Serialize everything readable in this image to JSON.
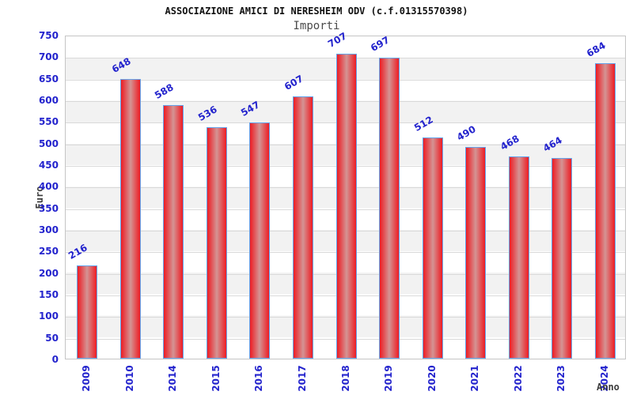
{
  "page": {
    "title": "ASSOCIAZIONE AMICI DI NERESHEIM ODV (c.f.01315570398)",
    "subtitle": "Importi"
  },
  "chart_data": {
    "type": "bar",
    "title": "ASSOCIAZIONE AMICI DI NERESHEIM ODV (c.f.01315570398)",
    "subtitle": "Importi",
    "xlabel": "Anno",
    "ylabel": "Euro",
    "categories": [
      "2009",
      "2010",
      "2014",
      "2015",
      "2016",
      "2017",
      "2018",
      "2019",
      "2020",
      "2021",
      "2022",
      "2023",
      "2024"
    ],
    "values": [
      216,
      648,
      588,
      536,
      547,
      607,
      707,
      697,
      512,
      490,
      468,
      464,
      684
    ],
    "ylim": [
      0,
      750
    ],
    "ytick_step": 50,
    "grid": "horizontal-50",
    "legend": "none",
    "background_bands": "alternating white / light gray per 50 units",
    "bar_label_rotation_deg": -30,
    "x_label_rotation_deg": -90,
    "colors": {
      "bar_fill_edge": "#ee1c23",
      "bar_fill_center": "#d49494",
      "bar_border": "#64a4ec",
      "label_blue": "#2323cd",
      "band_gray": "#f2f2f2",
      "gridline": "#d9d9d9",
      "plot_border": "#c5c5c5",
      "title_color": "#111111",
      "subtitle_color": "#4a4a4a",
      "axis_title_color": "#3c3c3c"
    }
  }
}
